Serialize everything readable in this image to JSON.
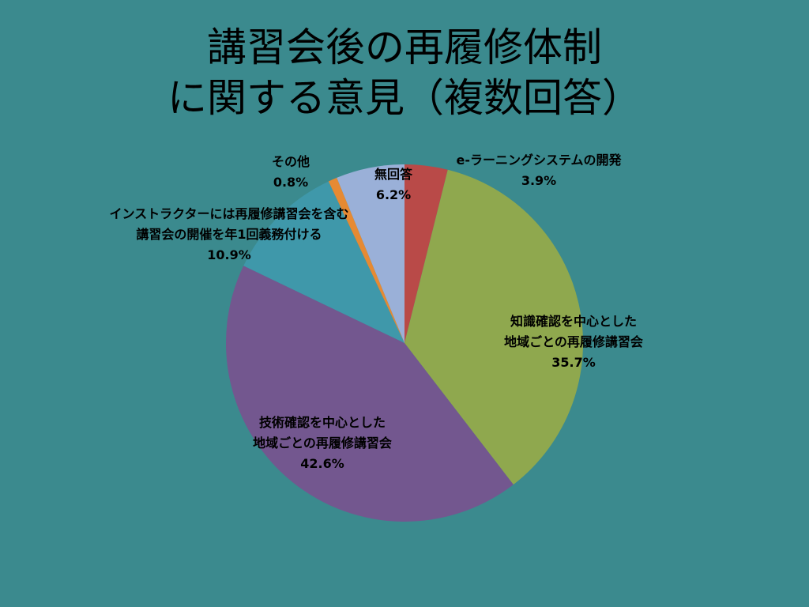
{
  "title": {
    "line1": "講習会後の再履修体制",
    "line2": "に関する意見（複数回答）"
  },
  "chart_data": {
    "type": "pie",
    "slices": [
      {
        "name": "e-ラーニングシステムの開発",
        "value": 3.9,
        "label": "3.9%",
        "color": "#b94a48"
      },
      {
        "name": "知識確認を中心とした地域ごとの再履修講習会",
        "value": 35.7,
        "label": "35.7%",
        "color": "#8fa84e"
      },
      {
        "name": "技術確認を中心とした地域ごとの再履修講習会",
        "value": 42.6,
        "label": "42.6%",
        "color": "#73578f"
      },
      {
        "name": "インストラクターには再履修講習会を含む講習会の開催を年1回義務付ける",
        "value": 10.9,
        "label": "10.9%",
        "color": "#3f98aa"
      },
      {
        "name": "その他",
        "value": 0.8,
        "label": "0.8%",
        "color": "#e68a33"
      },
      {
        "name": "無回答",
        "value": 6.2,
        "label": "6.2%",
        "color": "#9ab0d8"
      }
    ],
    "label_lines": [
      [
        "e-ラーニングシステムの開発"
      ],
      [
        "知識確認を中心とした",
        "地域ごとの再履修講習会"
      ],
      [
        "技術確認を中心とした",
        "地域ごとの再履修講習会"
      ],
      [
        "インストラクターには再履修講習会を含む",
        "講習会の開催を年1回義務付ける"
      ],
      [
        "その他"
      ],
      [
        "無回答"
      ]
    ],
    "start_angle": "12 o'clock",
    "direction": "clockwise",
    "legend": "none"
  }
}
